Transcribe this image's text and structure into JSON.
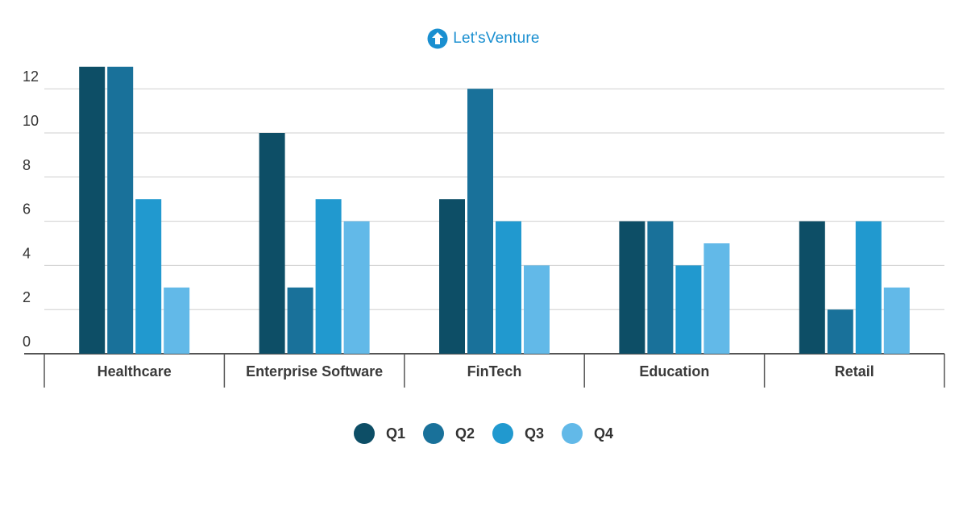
{
  "logo": {
    "text": "Let'sVenture",
    "icon": "up-arrow-circle-icon",
    "color": "#1a8fd0"
  },
  "chart_data": {
    "type": "bar",
    "title": "",
    "xlabel": "",
    "ylabel": "",
    "categories": [
      "Healthcare",
      "Enterprise Software",
      "FinTech",
      "Education",
      "Retail"
    ],
    "series": [
      {
        "name": "Q1",
        "color": "#0d4e66",
        "values": [
          13,
          10,
          7,
          6,
          6
        ]
      },
      {
        "name": "Q2",
        "color": "#19719a",
        "values": [
          13,
          3,
          12,
          6,
          2
        ]
      },
      {
        "name": "Q3",
        "color": "#2199cf",
        "values": [
          7,
          7,
          6,
          4,
          6
        ]
      },
      {
        "name": "Q4",
        "color": "#62b9e8",
        "values": [
          3,
          6,
          4,
          5,
          3
        ]
      }
    ],
    "yticks": [
      0,
      2,
      4,
      6,
      8,
      10,
      12
    ],
    "ylim": [
      0,
      13
    ],
    "grid": true,
    "legend_position": "bottom-center"
  }
}
